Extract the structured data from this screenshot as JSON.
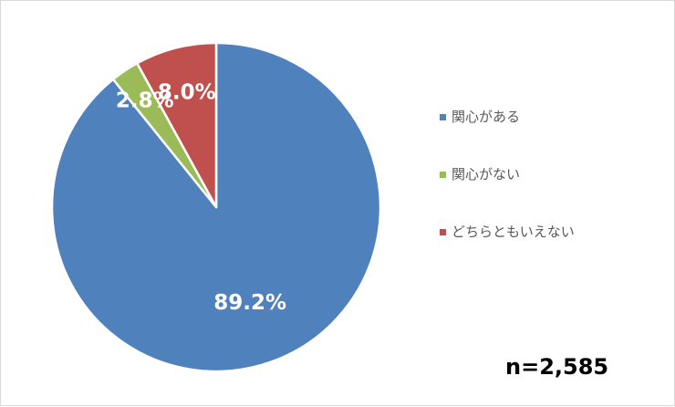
{
  "chart_data": {
    "type": "pie",
    "categories": [
      "関心がある",
      "関心がない",
      "どちらともいえない"
    ],
    "values": [
      89.2,
      2.8,
      8.0
    ],
    "labels": [
      "89.2%",
      "2.8%",
      "8.0%"
    ],
    "colors": [
      "#4f81bd",
      "#9bbb59",
      "#c0504d"
    ],
    "start": "12 o'clock, clockwise",
    "legend_position": "right",
    "annotation": "n=2,585"
  }
}
